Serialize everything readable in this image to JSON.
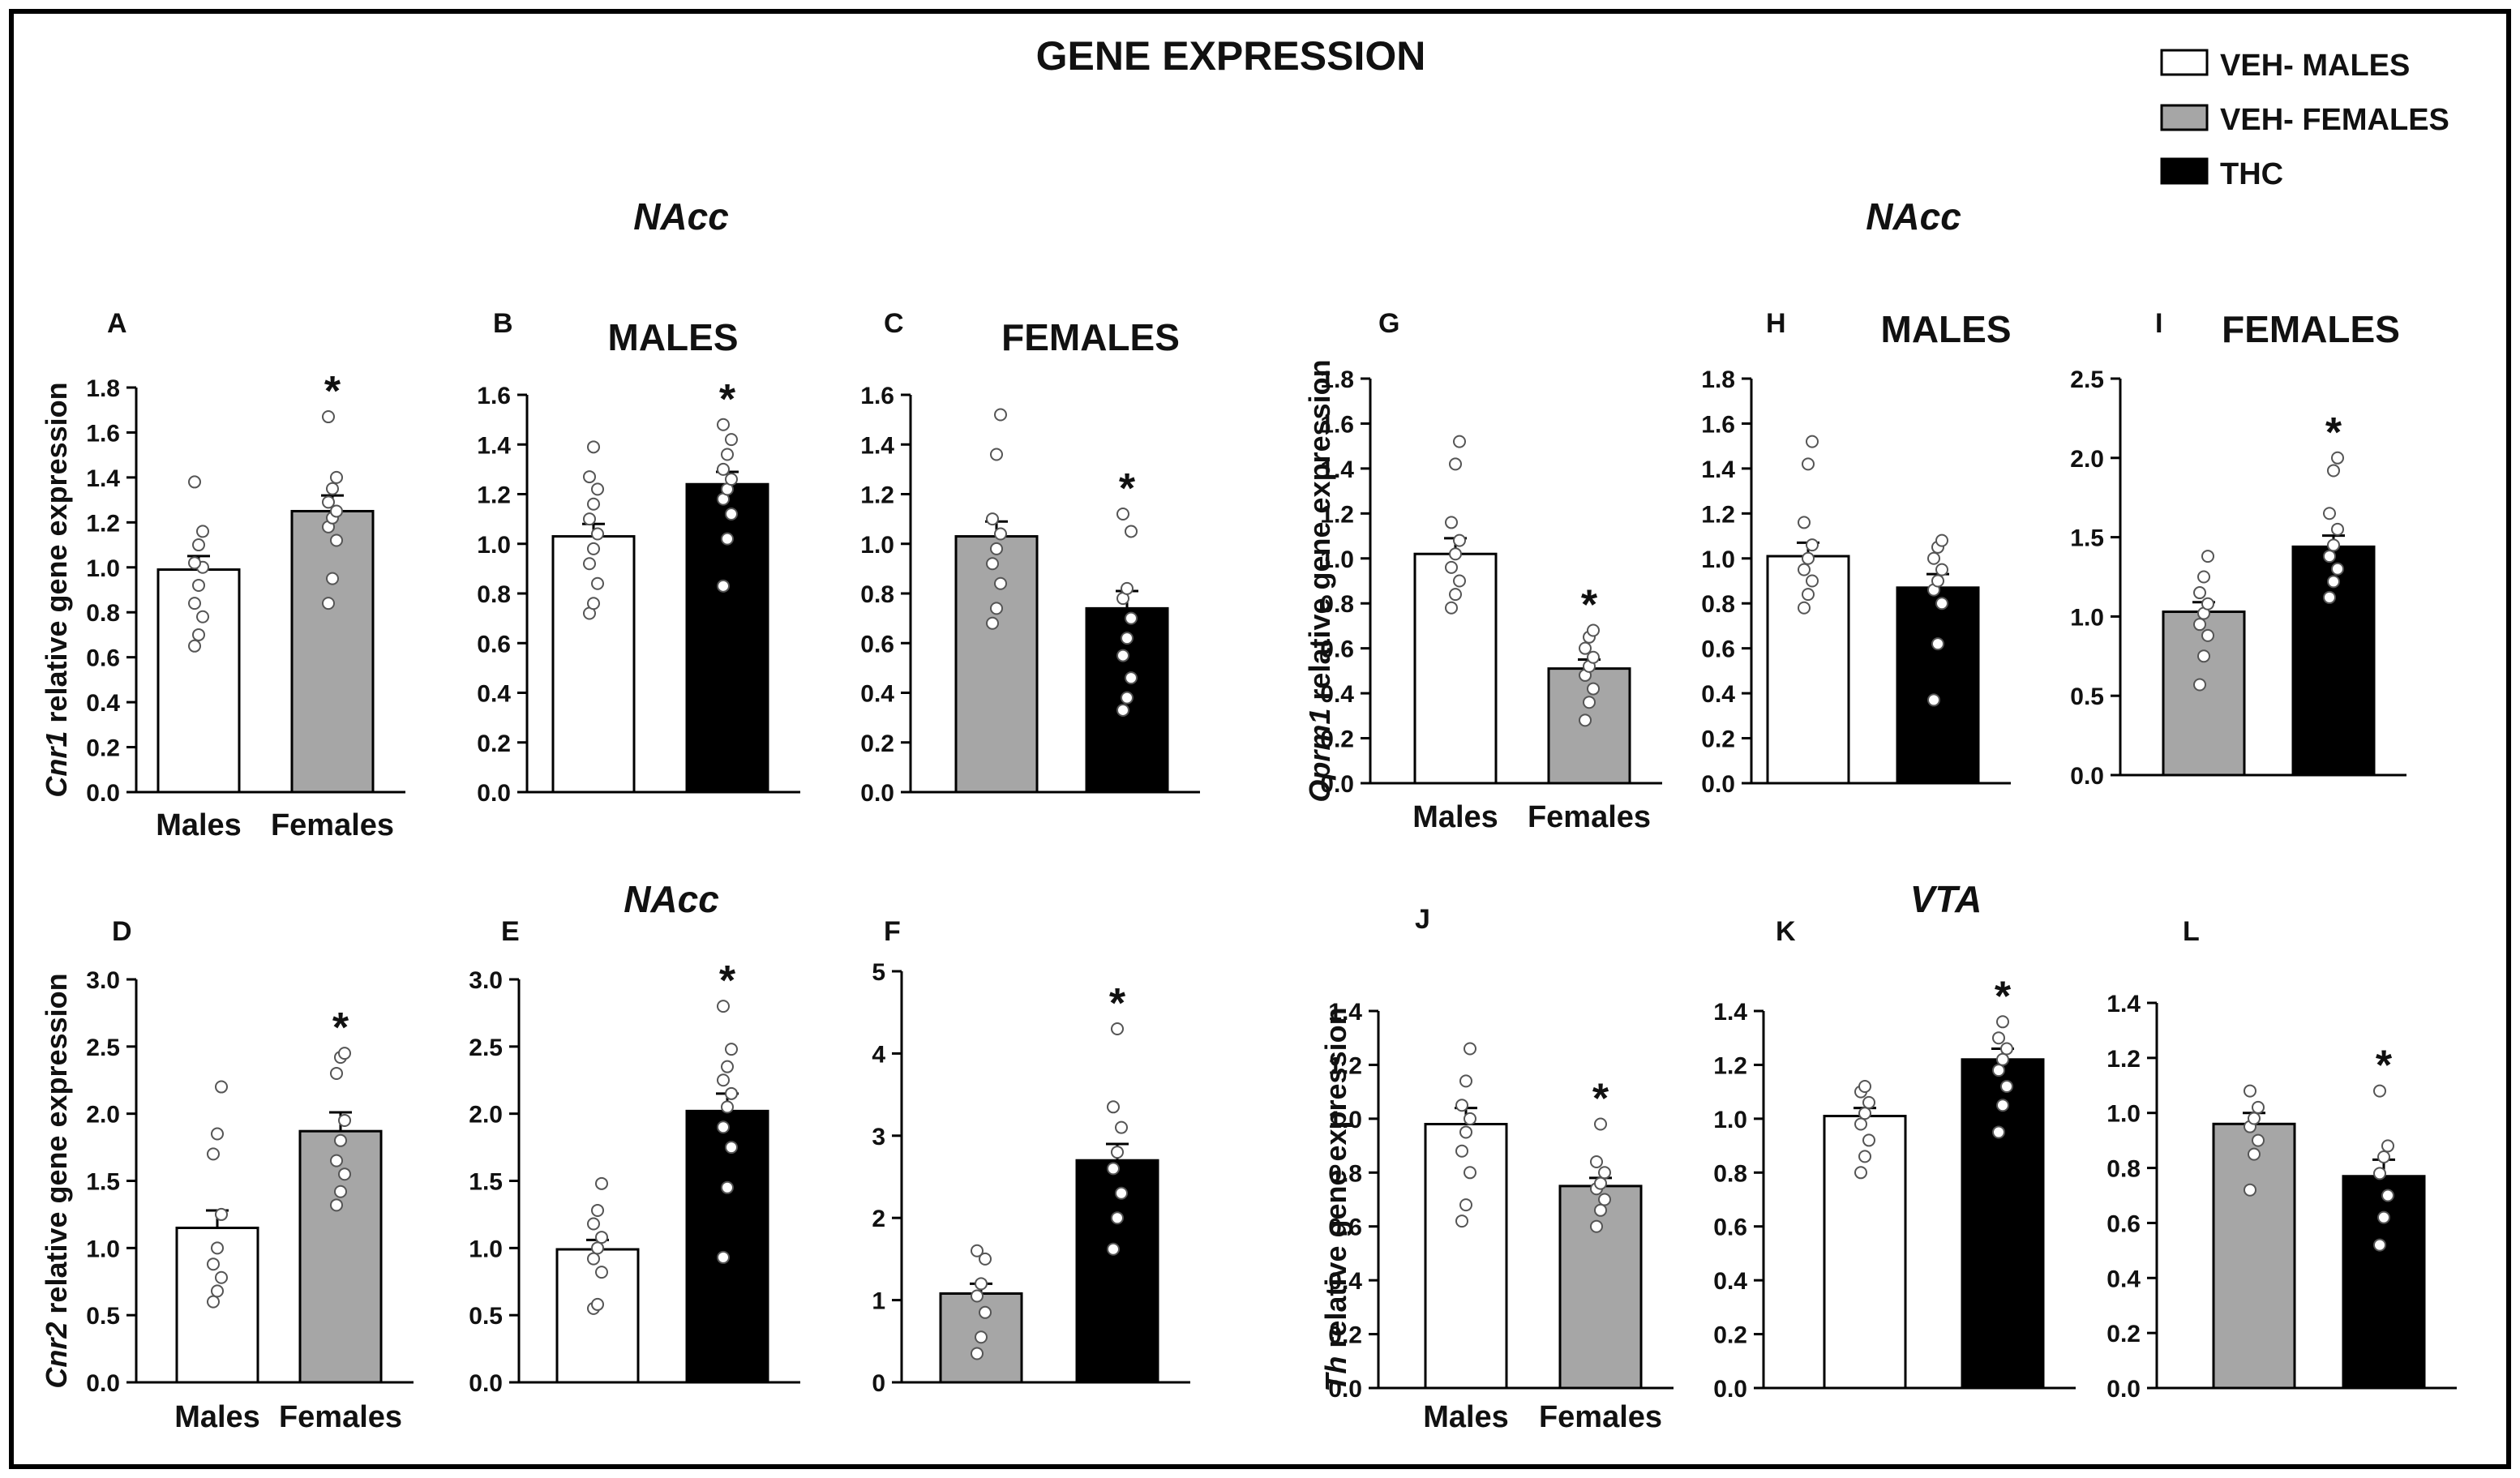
{
  "title": "GENE EXPRESSION",
  "legend": [
    {
      "label": "VEH- MALES",
      "color": "#ffffff"
    },
    {
      "label": "VEH- FEMALES",
      "color": "#a6a6a6"
    },
    {
      "label": "THC",
      "color": "#000000"
    }
  ],
  "section_labels": [
    "NAcc",
    "NAcc",
    "NAcc",
    "VTA"
  ],
  "chart_data": [
    {
      "panel": "A",
      "type": "bar",
      "title": "",
      "ylabel": "Cnr1 relative gene expression",
      "ylim": [
        0,
        1.8
      ],
      "yticks": [
        "0.0",
        "0.2",
        "0.4",
        "0.6",
        "0.8",
        "1.0",
        "1.2",
        "1.4",
        "1.6",
        "1.8"
      ],
      "categories": [
        "Males",
        "Females"
      ],
      "values": [
        0.99,
        1.25
      ],
      "errors": [
        0.06,
        0.07
      ],
      "colors": [
        "#ffffff",
        "#a6a6a6"
      ],
      "significance": [
        "",
        "*"
      ],
      "points": [
        [
          0.65,
          0.7,
          0.78,
          0.84,
          0.92,
          1.0,
          1.02,
          1.1,
          1.16,
          1.38
        ],
        [
          0.84,
          0.95,
          1.12,
          1.18,
          1.22,
          1.25,
          1.29,
          1.35,
          1.4,
          1.67
        ]
      ]
    },
    {
      "panel": "B",
      "type": "bar",
      "title": "MALES",
      "ylabel": "",
      "ylim": [
        0,
        1.6
      ],
      "yticks": [
        "0.0",
        "0.2",
        "0.4",
        "0.6",
        "0.8",
        "1.0",
        "1.2",
        "1.4",
        "1.6"
      ],
      "categories": [
        "",
        ""
      ],
      "values": [
        1.03,
        1.24
      ],
      "errors": [
        0.05,
        0.05
      ],
      "colors": [
        "#ffffff",
        "#000000"
      ],
      "significance": [
        "",
        "*"
      ],
      "points": [
        [
          0.72,
          0.76,
          0.84,
          0.92,
          0.98,
          1.04,
          1.1,
          1.16,
          1.22,
          1.27,
          1.39
        ],
        [
          0.83,
          1.02,
          1.12,
          1.18,
          1.22,
          1.26,
          1.3,
          1.36,
          1.42,
          1.48
        ]
      ]
    },
    {
      "panel": "C",
      "type": "bar",
      "title": "FEMALES",
      "ylabel": "",
      "ylim": [
        0,
        1.6
      ],
      "yticks": [
        "0.0",
        "0.2",
        "0.4",
        "0.6",
        "0.8",
        "1.0",
        "1.2",
        "1.4",
        "1.6"
      ],
      "categories": [
        "",
        ""
      ],
      "values": [
        1.03,
        0.74
      ],
      "errors": [
        0.06,
        0.07
      ],
      "colors": [
        "#a6a6a6",
        "#000000"
      ],
      "significance": [
        "",
        "*"
      ],
      "points": [
        [
          0.68,
          0.74,
          0.84,
          0.92,
          0.98,
          1.04,
          1.1,
          1.36,
          1.52
        ],
        [
          0.33,
          0.38,
          0.46,
          0.55,
          0.62,
          0.7,
          0.78,
          0.82,
          1.05,
          1.12
        ]
      ]
    },
    {
      "panel": "D",
      "type": "bar",
      "title": "",
      "ylabel": "Cnr2 relative gene expression",
      "ylim": [
        0,
        3.0
      ],
      "yticks": [
        "0.0",
        "0.5",
        "1.0",
        "1.5",
        "2.0",
        "2.5",
        "3.0"
      ],
      "categories": [
        "Males",
        "Females"
      ],
      "values": [
        1.15,
        1.87
      ],
      "errors": [
        0.13,
        0.14
      ],
      "colors": [
        "#ffffff",
        "#a6a6a6"
      ],
      "significance": [
        "",
        "*"
      ],
      "points": [
        [
          0.6,
          0.68,
          0.78,
          0.88,
          1.0,
          1.25,
          1.7,
          1.85,
          2.2
        ],
        [
          1.32,
          1.42,
          1.55,
          1.65,
          1.8,
          1.95,
          2.3,
          2.42,
          2.45
        ]
      ]
    },
    {
      "panel": "E",
      "type": "bar",
      "title": "NAcc",
      "ylabel": "",
      "ylim": [
        0,
        3.0
      ],
      "yticks": [
        "0.0",
        "0.5",
        "1.0",
        "1.5",
        "2.0",
        "2.5",
        "3.0"
      ],
      "categories": [
        "",
        ""
      ],
      "values": [
        0.99,
        2.02
      ],
      "errors": [
        0.07,
        0.13
      ],
      "colors": [
        "#ffffff",
        "#000000"
      ],
      "significance": [
        "",
        "*"
      ],
      "points": [
        [
          0.55,
          0.58,
          0.82,
          0.92,
          1.0,
          1.08,
          1.18,
          1.28,
          1.48
        ],
        [
          0.93,
          1.45,
          1.75,
          1.9,
          2.05,
          2.15,
          2.25,
          2.35,
          2.48,
          2.8
        ]
      ]
    },
    {
      "panel": "F",
      "type": "bar",
      "title": "",
      "ylabel": "",
      "ylim": [
        0,
        5
      ],
      "yticks": [
        "0",
        "1",
        "2",
        "3",
        "4",
        "5"
      ],
      "categories": [
        "",
        ""
      ],
      "values": [
        1.08,
        2.7
      ],
      "errors": [
        0.12,
        0.2
      ],
      "colors": [
        "#a6a6a6",
        "#000000"
      ],
      "significance": [
        "",
        "*"
      ],
      "points": [
        [
          0.35,
          0.55,
          0.85,
          1.05,
          1.2,
          1.5,
          1.6
        ],
        [
          1.62,
          2.0,
          2.3,
          2.6,
          2.8,
          3.1,
          3.35,
          4.3
        ]
      ]
    },
    {
      "panel": "G",
      "type": "bar",
      "title": "",
      "ylabel": "Oprm1 relative gene expression",
      "ylim": [
        0,
        1.8
      ],
      "yticks": [
        "0.0",
        "0.2",
        "0.4",
        "0.6",
        "0.8",
        "1.0",
        "1.2",
        "1.4",
        "1.6",
        "1.8"
      ],
      "categories": [
        "Males",
        "Females"
      ],
      "values": [
        1.02,
        0.51
      ],
      "errors": [
        0.07,
        0.04
      ],
      "colors": [
        "#ffffff",
        "#a6a6a6"
      ],
      "significance": [
        "",
        "*"
      ],
      "points": [
        [
          0.78,
          0.84,
          0.9,
          0.96,
          1.02,
          1.08,
          1.16,
          1.42,
          1.52
        ],
        [
          0.28,
          0.36,
          0.42,
          0.48,
          0.52,
          0.56,
          0.6,
          0.65,
          0.68
        ]
      ]
    },
    {
      "panel": "H",
      "type": "bar",
      "title": "MALES",
      "ylabel": "",
      "ylim": [
        0,
        1.8
      ],
      "yticks": [
        "0.0",
        "0.2",
        "0.4",
        "0.6",
        "0.8",
        "1.0",
        "1.2",
        "1.4",
        "1.6",
        "1.8"
      ],
      "categories": [
        "",
        ""
      ],
      "values": [
        1.01,
        0.87
      ],
      "errors": [
        0.06,
        0.06
      ],
      "colors": [
        "#ffffff",
        "#000000"
      ],
      "significance": [
        "",
        ""
      ],
      "points": [
        [
          0.78,
          0.84,
          0.9,
          0.95,
          1.0,
          1.06,
          1.16,
          1.42,
          1.52
        ],
        [
          0.37,
          0.62,
          0.8,
          0.86,
          0.9,
          0.95,
          1.0,
          1.05,
          1.08
        ]
      ]
    },
    {
      "panel": "I",
      "type": "bar",
      "title": "FEMALES",
      "ylabel": "",
      "ylim": [
        0,
        2.5
      ],
      "yticks": [
        "0.0",
        "0.5",
        "1.0",
        "1.5",
        "2.0",
        "2.5"
      ],
      "categories": [
        "",
        ""
      ],
      "values": [
        1.03,
        1.44
      ],
      "errors": [
        0.06,
        0.07
      ],
      "colors": [
        "#a6a6a6",
        "#000000"
      ],
      "significance": [
        "",
        "*"
      ],
      "points": [
        [
          0.57,
          0.75,
          0.88,
          0.95,
          1.02,
          1.08,
          1.15,
          1.25,
          1.38
        ],
        [
          1.12,
          1.22,
          1.3,
          1.38,
          1.45,
          1.55,
          1.65,
          1.92,
          2.0
        ]
      ]
    },
    {
      "panel": "J",
      "type": "bar",
      "title": "",
      "ylabel": "Th relative gene expression",
      "ylim": [
        0,
        1.4
      ],
      "yticks": [
        "0.0",
        "0.2",
        "0.4",
        "0.6",
        "0.8",
        "1.0",
        "1.2",
        "1.4"
      ],
      "categories": [
        "Males",
        "Females"
      ],
      "values": [
        0.98,
        0.75
      ],
      "errors": [
        0.06,
        0.03
      ],
      "colors": [
        "#ffffff",
        "#a6a6a6"
      ],
      "significance": [
        "",
        "*"
      ],
      "points": [
        [
          0.62,
          0.68,
          0.8,
          0.88,
          0.95,
          1.0,
          1.05,
          1.14,
          1.26
        ],
        [
          0.6,
          0.66,
          0.7,
          0.74,
          0.76,
          0.8,
          0.84,
          0.98
        ]
      ]
    },
    {
      "panel": "K",
      "type": "bar",
      "title": "VTA",
      "ylabel": "",
      "ylim": [
        0,
        1.4
      ],
      "yticks": [
        "0.0",
        "0.2",
        "0.4",
        "0.6",
        "0.8",
        "1.0",
        "1.2",
        "1.4"
      ],
      "categories": [
        "",
        ""
      ],
      "values": [
        1.01,
        1.22
      ],
      "errors": [
        0.03,
        0.04
      ],
      "colors": [
        "#ffffff",
        "#000000"
      ],
      "significance": [
        "",
        "*"
      ],
      "points": [
        [
          0.8,
          0.86,
          0.92,
          0.98,
          1.02,
          1.06,
          1.1,
          1.12
        ],
        [
          0.95,
          1.05,
          1.12,
          1.18,
          1.22,
          1.26,
          1.3,
          1.36
        ]
      ]
    },
    {
      "panel": "L",
      "type": "bar",
      "title": "",
      "ylabel": "",
      "ylim": [
        0,
        1.4
      ],
      "yticks": [
        "0.0",
        "0.2",
        "0.4",
        "0.6",
        "0.8",
        "1.0",
        "1.2",
        "1.4"
      ],
      "categories": [
        "",
        ""
      ],
      "values": [
        0.96,
        0.77
      ],
      "errors": [
        0.04,
        0.06
      ],
      "colors": [
        "#a6a6a6",
        "#000000"
      ],
      "significance": [
        "",
        "*"
      ],
      "points": [
        [
          0.72,
          0.85,
          0.9,
          0.95,
          0.98,
          1.02,
          1.08
        ],
        [
          0.52,
          0.62,
          0.7,
          0.78,
          0.84,
          0.88,
          1.08
        ]
      ]
    }
  ]
}
